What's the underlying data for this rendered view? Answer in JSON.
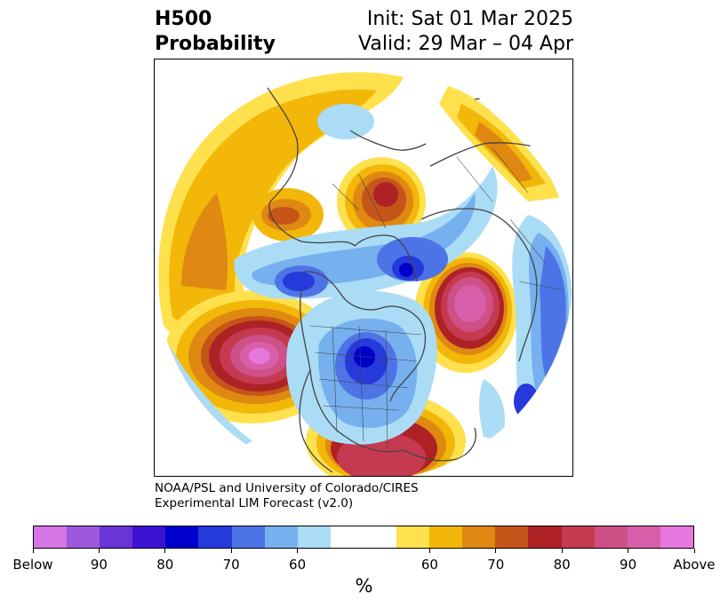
{
  "title": {
    "left_line1": "H500",
    "left_line2": "Probability",
    "right_line1": "Init: Sat 01 Mar 2025",
    "right_line2": "Valid: 29 Mar – 04 Apr"
  },
  "credit": {
    "line1": "NOAA/PSL and University of Colorado/CIRES",
    "line2": "Experimental LIM Forecast (v2.0)"
  },
  "map": {
    "projection": "north polar stereographic",
    "features": [
      "coastlines",
      "country borders",
      "state/province borders"
    ],
    "anomalies": [
      {
        "region": "Northeast Pacific / Gulf of Alaska",
        "sign": "above",
        "max_category": "Above"
      },
      {
        "region": "North Atlantic (east of Newfoundland)",
        "sign": "above",
        "max_category": "Above"
      },
      {
        "region": "Gulf of Mexico / southern US",
        "sign": "above",
        "max_category": "90"
      },
      {
        "region": "Northern Europe / Scandinavia",
        "sign": "above",
        "max_category": "80"
      },
      {
        "region": "Eastern Siberia / North Pacific rim",
        "sign": "above",
        "max_category": "70"
      },
      {
        "region": "Hudson Bay / Great Lakes",
        "sign": "below",
        "max_category": "80"
      },
      {
        "region": "Baffin Bay / Greenland west",
        "sign": "below",
        "max_category": "80"
      },
      {
        "region": "Arctic / Beaufort",
        "sign": "below",
        "max_category": "70"
      },
      {
        "region": "Central Asia",
        "sign": "below",
        "max_category": "70"
      }
    ]
  },
  "colorbar": {
    "unit": "%",
    "colors": [
      "#d676e6",
      "#9d58df",
      "#6a34d7",
      "#3b13d2",
      "#0000cc",
      "#2639db",
      "#4d74e6",
      "#76b0ee",
      "#aadcf6",
      "#ffffff",
      "#ffffff",
      "#ffe04d",
      "#f2b709",
      "#df8812",
      "#c65519",
      "#ae2125",
      "#c53a51",
      "#cd5087",
      "#d95eaa",
      "#e677de"
    ],
    "labels": [
      "Below",
      "90",
      "80",
      "70",
      "60",
      "60",
      "70",
      "80",
      "90",
      "Above"
    ]
  }
}
